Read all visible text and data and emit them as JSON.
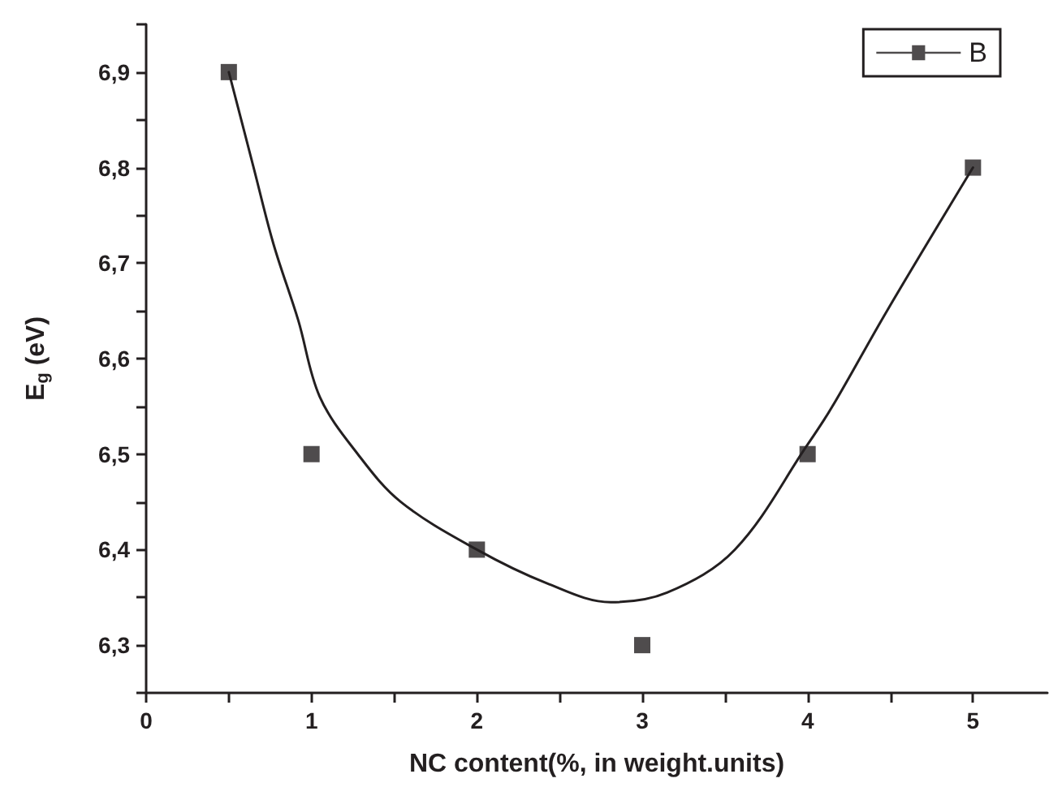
{
  "chart_data": {
    "type": "scatter",
    "xlabel": "NC content(%, in weight.units)",
    "ylabel": "E$_{g}$ (eV)",
    "xlim": [
      0,
      5.45
    ],
    "xticks": [
      0,
      {
        "value": 0.5,
        "label": null
      },
      1,
      {
        "value": 1.5,
        "label": null
      },
      2,
      {
        "value": 2.5,
        "label": null
      },
      3,
      {
        "value": 3.5,
        "label": null
      },
      4,
      {
        "value": 4.5,
        "label": null
      },
      5
    ],
    "ylim": [
      6.25,
      6.95
    ],
    "yticks": [
      {
        "value": 6.25,
        "label": null
      },
      {
        "value": 6.3,
        "label": "6,3"
      },
      {
        "value": 6.35,
        "label": null
      },
      {
        "value": 6.4,
        "label": "6,4"
      },
      {
        "value": 6.45,
        "label": null
      },
      {
        "value": 6.5,
        "label": "6,5"
      },
      {
        "value": 6.55,
        "label": null
      },
      {
        "value": 6.6,
        "label": "6,6"
      },
      {
        "value": 6.65,
        "label": null
      },
      {
        "value": 6.7,
        "label": "6,7"
      },
      {
        "value": 6.75,
        "label": null
      },
      {
        "value": 6.8,
        "label": "6,8"
      },
      {
        "value": 6.85,
        "label": null
      },
      {
        "value": 6.9,
        "label": "6,9"
      },
      {
        "value": 6.95,
        "label": null
      }
    ],
    "grid": false,
    "legend": "top right",
    "marker": "square",
    "series": [
      {
        "name": "B",
        "color": "#231f20",
        "x": [
          0.5,
          1,
          2,
          3,
          4,
          5
        ],
        "values": [
          6.9,
          6.5,
          6.4,
          6.3,
          6.5,
          6.8
        ]
      },
      {
        "type": "line",
        "color": "#231f20",
        "marker": "none",
        "x": [
          0.5,
          0.65,
          0.77,
          0.92,
          1.05,
          1.28,
          1.54,
          2,
          2.42,
          2.81,
          3.15,
          3.56,
          4,
          4.15,
          4.48,
          5
        ],
        "values": [
          6.9,
          6.8,
          6.72,
          6.64,
          6.56,
          6.5,
          6.45,
          6.4,
          6.365,
          6.345,
          6.355,
          6.4,
          6.51,
          6.55,
          6.65,
          6.8
        ]
      }
    ]
  }
}
